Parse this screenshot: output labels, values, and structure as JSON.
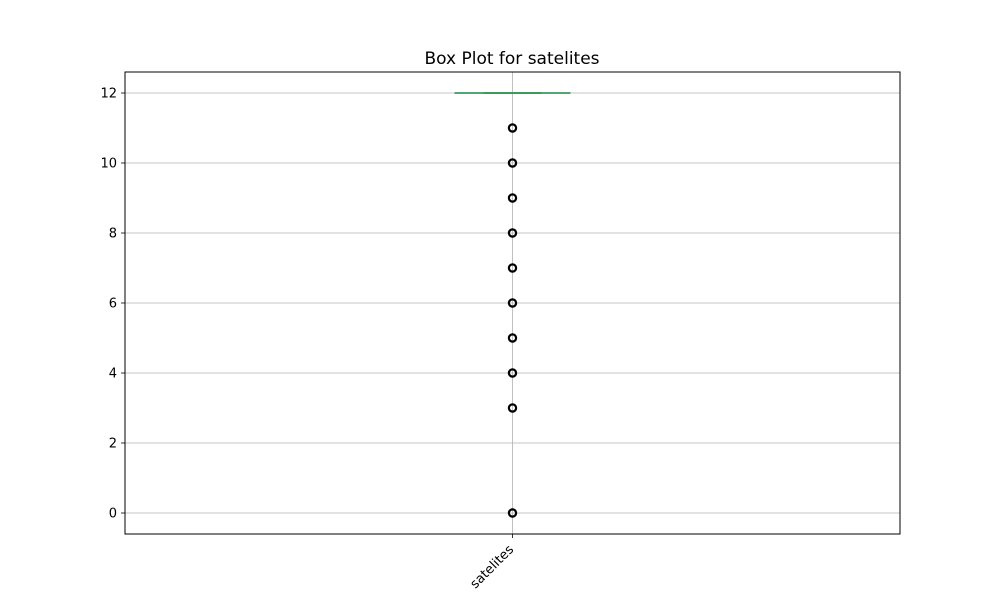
{
  "chart_data": {
    "type": "box",
    "title": "Box Plot for satelites",
    "xlabel": "",
    "ylabel": "",
    "categories": [
      "satelites"
    ],
    "ylim": [
      -0.6,
      12.6
    ],
    "yticks": [
      0,
      2,
      4,
      6,
      8,
      10,
      12
    ],
    "grid": true,
    "xtick_rotation": 45,
    "box": {
      "q1": 12,
      "median": 12,
      "q3": 12,
      "whisker_low": 12,
      "whisker_high": 12
    },
    "outliers": [
      11,
      10,
      9,
      8,
      7,
      6,
      5,
      4,
      3,
      0
    ],
    "colors": {
      "median": "#3a9a5f",
      "box": "#1f77b4",
      "outlier_edge": "#000000",
      "grid": "#b0b0b0"
    }
  }
}
